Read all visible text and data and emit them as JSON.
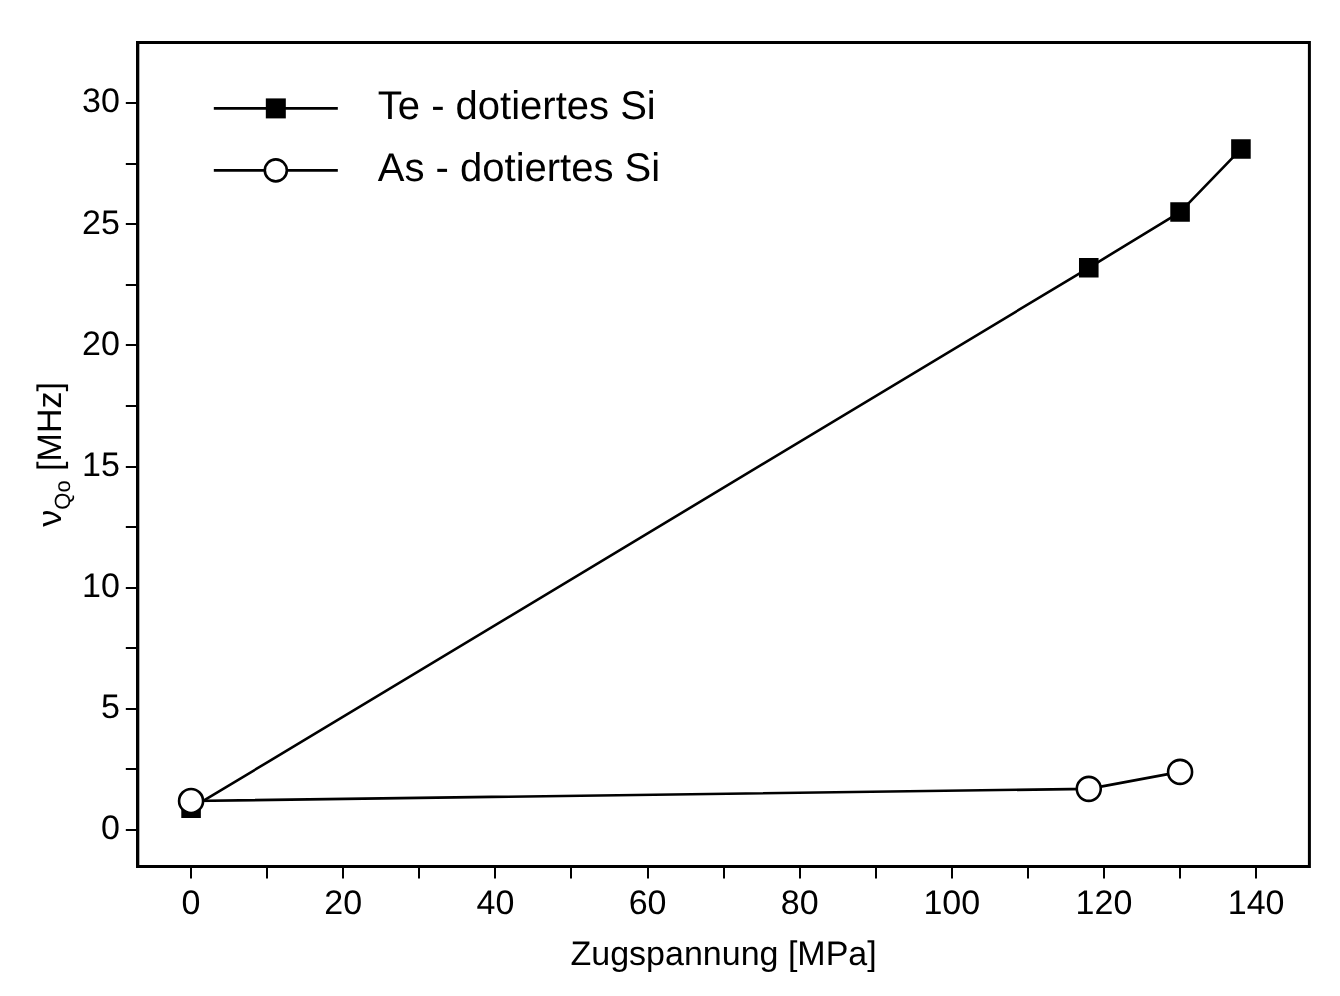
{
  "chart_data": {
    "type": "line",
    "xlabel": "Zugspannung [MPa]",
    "ylabel": "ν$_{Qo}$ [MHz]",
    "grid": false,
    "legend": "top left",
    "line_style": "solid",
    "xlim": [
      -7,
      147
    ],
    "xticks": [
      0,
      {
        "value": 10,
        "label": null
      },
      20,
      {
        "value": 30,
        "label": null
      },
      40,
      {
        "value": 50,
        "label": null
      },
      60,
      {
        "value": 70,
        "label": null
      },
      80,
      {
        "value": 90,
        "label": null
      },
      100,
      {
        "value": 110,
        "label": null
      },
      120,
      {
        "value": 130,
        "label": null
      },
      140
    ],
    "ylim": [
      -1.5,
      32.5
    ],
    "yticks": [
      0,
      {
        "value": 2.5,
        "label": null
      },
      5,
      {
        "value": 7.5,
        "label": null
      },
      10,
      {
        "value": 12.5,
        "label": null
      },
      15,
      {
        "value": 17.5,
        "label": null
      },
      20,
      {
        "value": 22.5,
        "label": null
      },
      25,
      {
        "value": 27.5,
        "label": null
      },
      30
    ],
    "series": [
      {
        "name": "Te - dotiertes Si",
        "color": "#000000",
        "marker": "square",
        "x": [
          0,
          118,
          130,
          138
        ],
        "values": [
          0.9,
          23.2,
          25.5,
          28.1
        ]
      },
      {
        "name": "As - dotiertes Si",
        "color": "#000000",
        "marker": "circle",
        "x": [
          0,
          118,
          130
        ],
        "values": [
          1.2,
          1.7,
          2.4
        ]
      }
    ]
  }
}
